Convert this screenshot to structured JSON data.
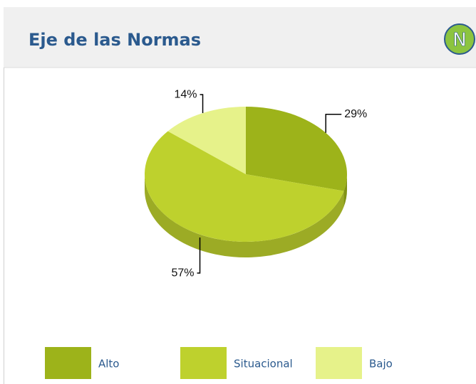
{
  "header": {
    "icon": "N"
  },
  "chart_data": {
    "type": "pie",
    "title": "Eje de las Normas",
    "categories": [
      "Alto",
      "Situacional",
      "Bajo"
    ],
    "values": [
      29,
      57,
      14
    ],
    "value_labels": [
      "29%",
      "57%",
      "14%"
    ],
    "colors": [
      "#9db31a",
      "#bed12d",
      "#e6f28a"
    ]
  }
}
